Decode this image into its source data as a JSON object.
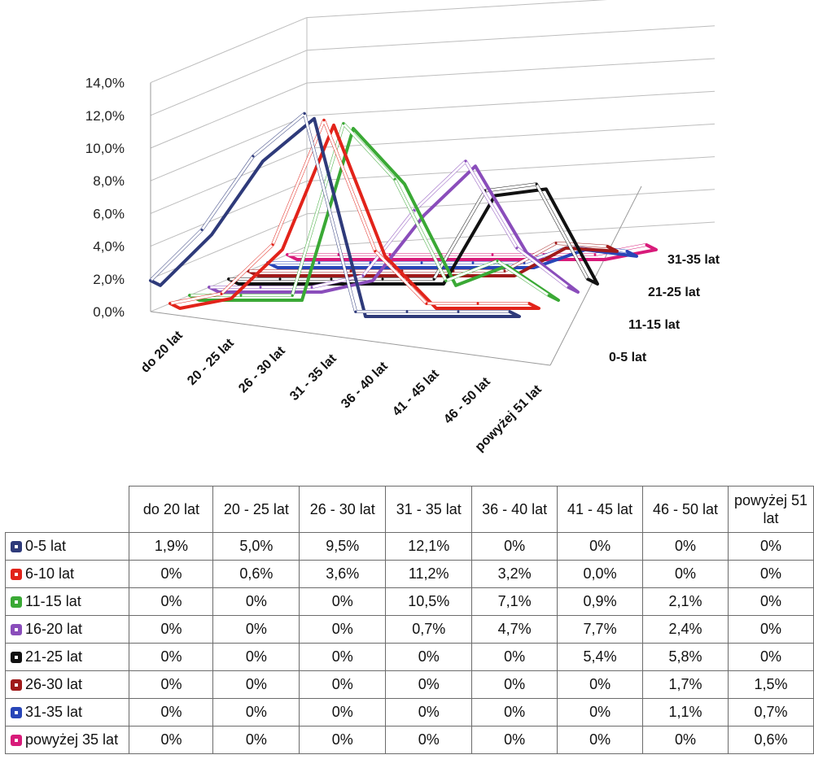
{
  "chart_data": {
    "type": "line",
    "chart_style": "3d-line",
    "categories": [
      "do 20 lat",
      "20 - 25 lat",
      "26 - 30 lat",
      "31 - 35 lat",
      "36 - 40 lat",
      "41 - 45 lat",
      "46 - 50 lat",
      "powyżej 51 lat"
    ],
    "y_ticks": [
      "0,0%",
      "2,0%",
      "4,0%",
      "6,0%",
      "8,0%",
      "10,0%",
      "12,0%",
      "14,0%"
    ],
    "ylim": [
      0,
      14
    ],
    "depth_labels": [
      "0-5 lat",
      "11-15 lat",
      "21-25 lat",
      "31-35 lat"
    ],
    "grid": true,
    "legend": "table-below",
    "series": [
      {
        "name": "0-5 lat",
        "color": "#2e3a7a",
        "values": [
          1.9,
          5.0,
          9.5,
          12.1,
          0,
          0,
          0,
          0
        ],
        "labels": [
          "1,9%",
          "5,0%",
          "9,5%",
          "12,1%",
          "0%",
          "0%",
          "0%",
          "0%"
        ]
      },
      {
        "name": "6-10 lat",
        "color": "#e2231a",
        "values": [
          0,
          0.6,
          3.6,
          11.2,
          3.2,
          0.0,
          0,
          0
        ],
        "labels": [
          "0%",
          "0,6%",
          "3,6%",
          "11,2%",
          "3,2%",
          "0,0%",
          "0%",
          "0%"
        ]
      },
      {
        "name": "11-15 lat",
        "color": "#3aa935",
        "values": [
          0,
          0,
          0,
          10.5,
          7.1,
          0.9,
          2.1,
          0
        ],
        "labels": [
          "0%",
          "0%",
          "0%",
          "10,5%",
          "7,1%",
          "0,9%",
          "2,1%",
          "0%"
        ]
      },
      {
        "name": "16-20 lat",
        "color": "#8a4dbb",
        "values": [
          0,
          0,
          0,
          0.7,
          4.7,
          7.7,
          2.4,
          0
        ],
        "labels": [
          "0%",
          "0%",
          "0%",
          "0,7%",
          "4,7%",
          "7,7%",
          "2,4%",
          "0%"
        ]
      },
      {
        "name": "21-25 lat",
        "color": "#111111",
        "values": [
          0,
          0,
          0,
          0,
          0,
          5.4,
          5.8,
          0
        ],
        "labels": [
          "0%",
          "0%",
          "0%",
          "0%",
          "0%",
          "5,4%",
          "5,8%",
          "0%"
        ]
      },
      {
        "name": "26-30 lat",
        "color": "#a01a1a",
        "values": [
          0,
          0,
          0,
          0,
          0,
          0,
          1.7,
          1.5
        ],
        "labels": [
          "0%",
          "0%",
          "0%",
          "0%",
          "0%",
          "0%",
          "1,7%",
          "1,5%"
        ]
      },
      {
        "name": "31-35 lat",
        "color": "#2846b8",
        "values": [
          0,
          0,
          0,
          0,
          0,
          0,
          1.1,
          0.7
        ],
        "labels": [
          "0%",
          "0%",
          "0%",
          "0%",
          "0%",
          "0%",
          "1,1%",
          "0,7%"
        ]
      },
      {
        "name": "powyżej 35 lat",
        "color": "#d81b7a",
        "values": [
          0,
          0,
          0,
          0,
          0,
          0,
          0,
          0.6
        ],
        "labels": [
          "0%",
          "0%",
          "0%",
          "0%",
          "0%",
          "0%",
          "0%",
          "0,6%"
        ]
      }
    ]
  }
}
